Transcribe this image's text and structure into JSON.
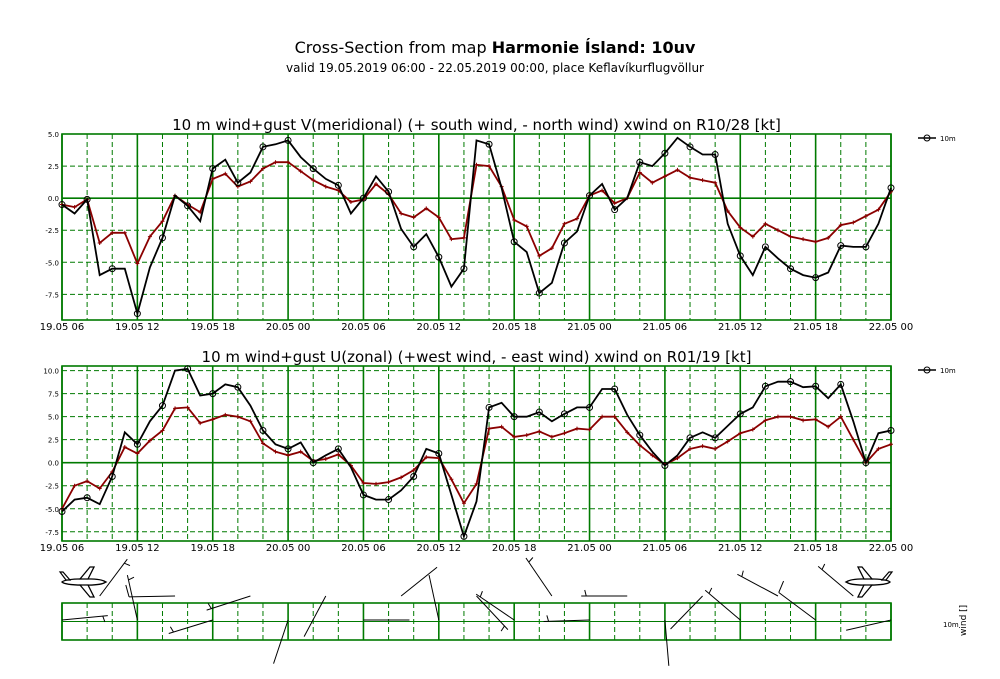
{
  "header": {
    "title_prefix": "Cross-Section from map ",
    "title_bold": "Harmonie Ísland: 10uv",
    "subtitle": "valid 19.05.2019 06:00 - 22.05.2019 00:00, place Keflavíkurflugvöllur"
  },
  "colors": {
    "grid": "#007a00",
    "series_10m": "#000000",
    "series_mean": "#8b0000"
  },
  "x_tick_labels": [
    "19.05 06",
    "19.05 12",
    "19.05 18",
    "20.05 00",
    "20.05 06",
    "20.05 12",
    "20.05 18",
    "21.05 00",
    "21.05 06",
    "21.05 12",
    "21.05 18",
    "22.05 00"
  ],
  "legend_10m": "10m",
  "barbs_label": {
    "level": "10m",
    "param": "wind [] "
  },
  "chart_data": [
    {
      "type": "line",
      "title": "10 m wind+gust V(meridional) (+ south wind, - north wind) xwind on R10/28 [kt]",
      "x_start": "19.05.2019 06:00",
      "x_step_hours": 1,
      "ylim": [
        -9.5,
        5.0
      ],
      "yticks": [
        5.0,
        2.5,
        0.0,
        -2.5,
        -5.0,
        -7.5
      ],
      "grid": true,
      "legend_position": "right",
      "series": [
        {
          "name": "10m",
          "marker": "circle",
          "values": [
            -0.5,
            -1.2,
            -0.1,
            -6.0,
            -5.5,
            -5.5,
            -9.0,
            -5.4,
            -3.1,
            0.2,
            -0.6,
            -1.8,
            2.3,
            3.0,
            1.2,
            2.0,
            4.0,
            4.2,
            4.5,
            3.2,
            2.3,
            1.5,
            1.0,
            -1.2,
            0.0,
            1.7,
            0.5,
            -2.4,
            -3.8,
            -2.8,
            -4.6,
            -6.9,
            -5.5,
            4.5,
            4.2,
            0.8,
            -3.4,
            -4.2,
            -7.4,
            -6.6,
            -3.5,
            -2.6,
            0.2,
            1.1,
            -0.9,
            0.0,
            2.8,
            2.5,
            3.5,
            4.7,
            4.0,
            3.4,
            3.4,
            -2.0,
            -4.5,
            -6.0,
            -3.8,
            -4.7,
            -5.5,
            -6.0,
            -6.2,
            -5.8,
            -3.7,
            -3.8,
            -3.8,
            -2.0,
            0.8
          ]
        },
        {
          "values": [
            -0.5,
            -0.7,
            -0.1,
            -3.5,
            -2.7,
            -2.7,
            -5.1,
            -3.0,
            -1.8,
            0.2,
            -0.5,
            -1.1,
            1.5,
            1.9,
            0.9,
            1.3,
            2.3,
            2.8,
            2.8,
            2.1,
            1.4,
            0.9,
            0.6,
            -0.3,
            -0.1,
            1.1,
            0.3,
            -1.2,
            -1.5,
            -0.8,
            -1.5,
            -3.2,
            -3.1,
            2.6,
            2.5,
            0.9,
            -1.7,
            -2.2,
            -4.5,
            -3.9,
            -2.0,
            -1.6,
            0.2,
            0.6,
            -0.4,
            0.0,
            2.0,
            1.2,
            1.7,
            2.2,
            1.6,
            1.4,
            1.2,
            -1.0,
            -2.3,
            -3.0,
            -2.0,
            -2.5,
            -3.0,
            -3.2,
            -3.4,
            -3.1,
            -2.1,
            -1.9,
            -1.4,
            -0.9,
            0.5
          ]
        }
      ]
    },
    {
      "type": "line",
      "title": "10 m wind+gust U(zonal) (+west wind, - east wind) xwind on R01/19 [kt]",
      "x_start": "19.05.2019 06:00",
      "x_step_hours": 1,
      "ylim": [
        -8.5,
        10.5
      ],
      "yticks": [
        10.0,
        7.5,
        5.0,
        2.5,
        0.0,
        -2.5,
        -5.0,
        -7.5
      ],
      "grid": true,
      "legend_position": "right",
      "series": [
        {
          "name": "10m",
          "marker": "circle",
          "values": [
            -5.3,
            -4.0,
            -3.8,
            -4.5,
            -1.5,
            3.3,
            2.0,
            4.5,
            6.2,
            10.0,
            10.2,
            7.3,
            7.5,
            8.5,
            8.2,
            6.2,
            3.5,
            2.0,
            1.5,
            2.2,
            0.0,
            0.8,
            1.5,
            -0.5,
            -3.5,
            -4.0,
            -4.0,
            -3.0,
            -1.5,
            1.5,
            1.0,
            -3.5,
            -8.0,
            -4.2,
            6.0,
            6.5,
            5.0,
            5.0,
            5.5,
            4.5,
            5.3,
            6.0,
            6.0,
            8.0,
            8.0,
            5.2,
            3.0,
            1.2,
            -0.3,
            0.8,
            2.7,
            3.3,
            2.7,
            4.0,
            5.3,
            6.0,
            8.3,
            8.8,
            8.8,
            8.2,
            8.3,
            7.0,
            8.5,
            4.5,
            0.0,
            3.2,
            3.5
          ]
        },
        {
          "values": [
            -5.0,
            -2.5,
            -2.0,
            -2.8,
            -1.0,
            1.7,
            1.0,
            2.4,
            3.5,
            5.9,
            6.0,
            4.3,
            4.7,
            5.2,
            5.0,
            4.5,
            2.1,
            1.2,
            0.8,
            1.2,
            0.2,
            0.4,
            0.9,
            -0.3,
            -2.2,
            -2.3,
            -2.1,
            -1.6,
            -0.8,
            0.6,
            0.5,
            -1.8,
            -4.4,
            -2.3,
            3.7,
            3.9,
            2.8,
            3.0,
            3.4,
            2.8,
            3.2,
            3.7,
            3.6,
            5.0,
            5.0,
            3.3,
            1.9,
            0.8,
            -0.2,
            0.5,
            1.5,
            1.8,
            1.5,
            2.3,
            3.2,
            3.6,
            4.6,
            5.0,
            5.0,
            4.6,
            4.7,
            3.9,
            5.0,
            2.5,
            0.0,
            1.5,
            2.0
          ]
        }
      ]
    }
  ]
}
